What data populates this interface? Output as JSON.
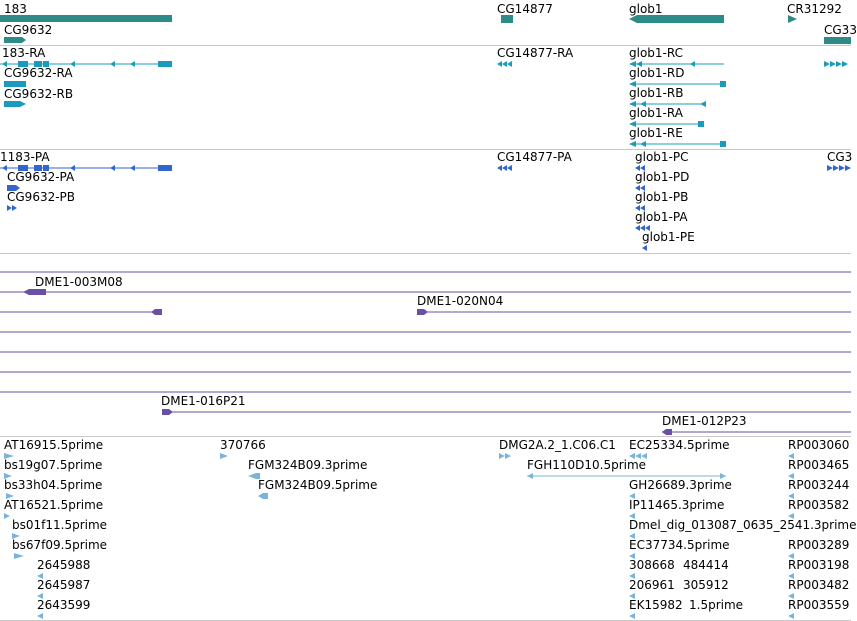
{
  "colors": {
    "gene": "#2e8b87",
    "transcript": "#1a9bbd",
    "protein": "#3366cc",
    "clone": "#6a4fa6",
    "est": "#7ab4dd",
    "separator": "#c8c8c8"
  },
  "tracks": {
    "genes": {
      "labels": [
        "183",
        "CG9632",
        "CG14877",
        "glob1",
        "CR31292",
        "CG33"
      ]
    },
    "transcripts": {
      "labels": [
        "183-RA",
        "CG9632-RA",
        "CG9632-RB",
        "CG14877-RA",
        "glob1-RC",
        "glob1-RD",
        "glob1-RB",
        "glob1-RA",
        "glob1-RE"
      ]
    },
    "proteins": {
      "labels": [
        "1183-PA",
        "CG9632-PA",
        "CG9632-PB",
        "CG14877-PA",
        "glob1-PC",
        "glob1-PD",
        "glob1-PB",
        "glob1-PA",
        "glob1-PE",
        "CG3"
      ]
    },
    "clones": {
      "labels": [
        "DME1-003M08",
        "DME1-020N04",
        "DME1-016P21",
        "DME1-012P23"
      ]
    },
    "ests": {
      "labels": [
        "AT16915.5prime",
        "bs19g07.5prime",
        "bs33h04.5prime",
        "AT16521.5prime",
        "bs01f11.5prime",
        "bs67f09.5prime",
        "2645988",
        "2645987",
        "2643599",
        "370766",
        "FGM324B09.3prime",
        "FGM324B09.5prime",
        "DMG2A.2_1.C06.C1",
        "FGH110D10.5prime",
        "EC25334.5prime",
        "GH26689.3prime",
        "IP11465.3prime",
        "Dmel_dig_013087_0635_2541.3prime",
        "EC37734.5prime",
        "308668",
        "484414",
        "206961",
        "305912",
        "EK15982",
        "1.5prime",
        "RP003060",
        "RP003465",
        "RP003244",
        "RP003582",
        "RP003289",
        "RP003198",
        "RP003482",
        "RP003559"
      ]
    }
  }
}
